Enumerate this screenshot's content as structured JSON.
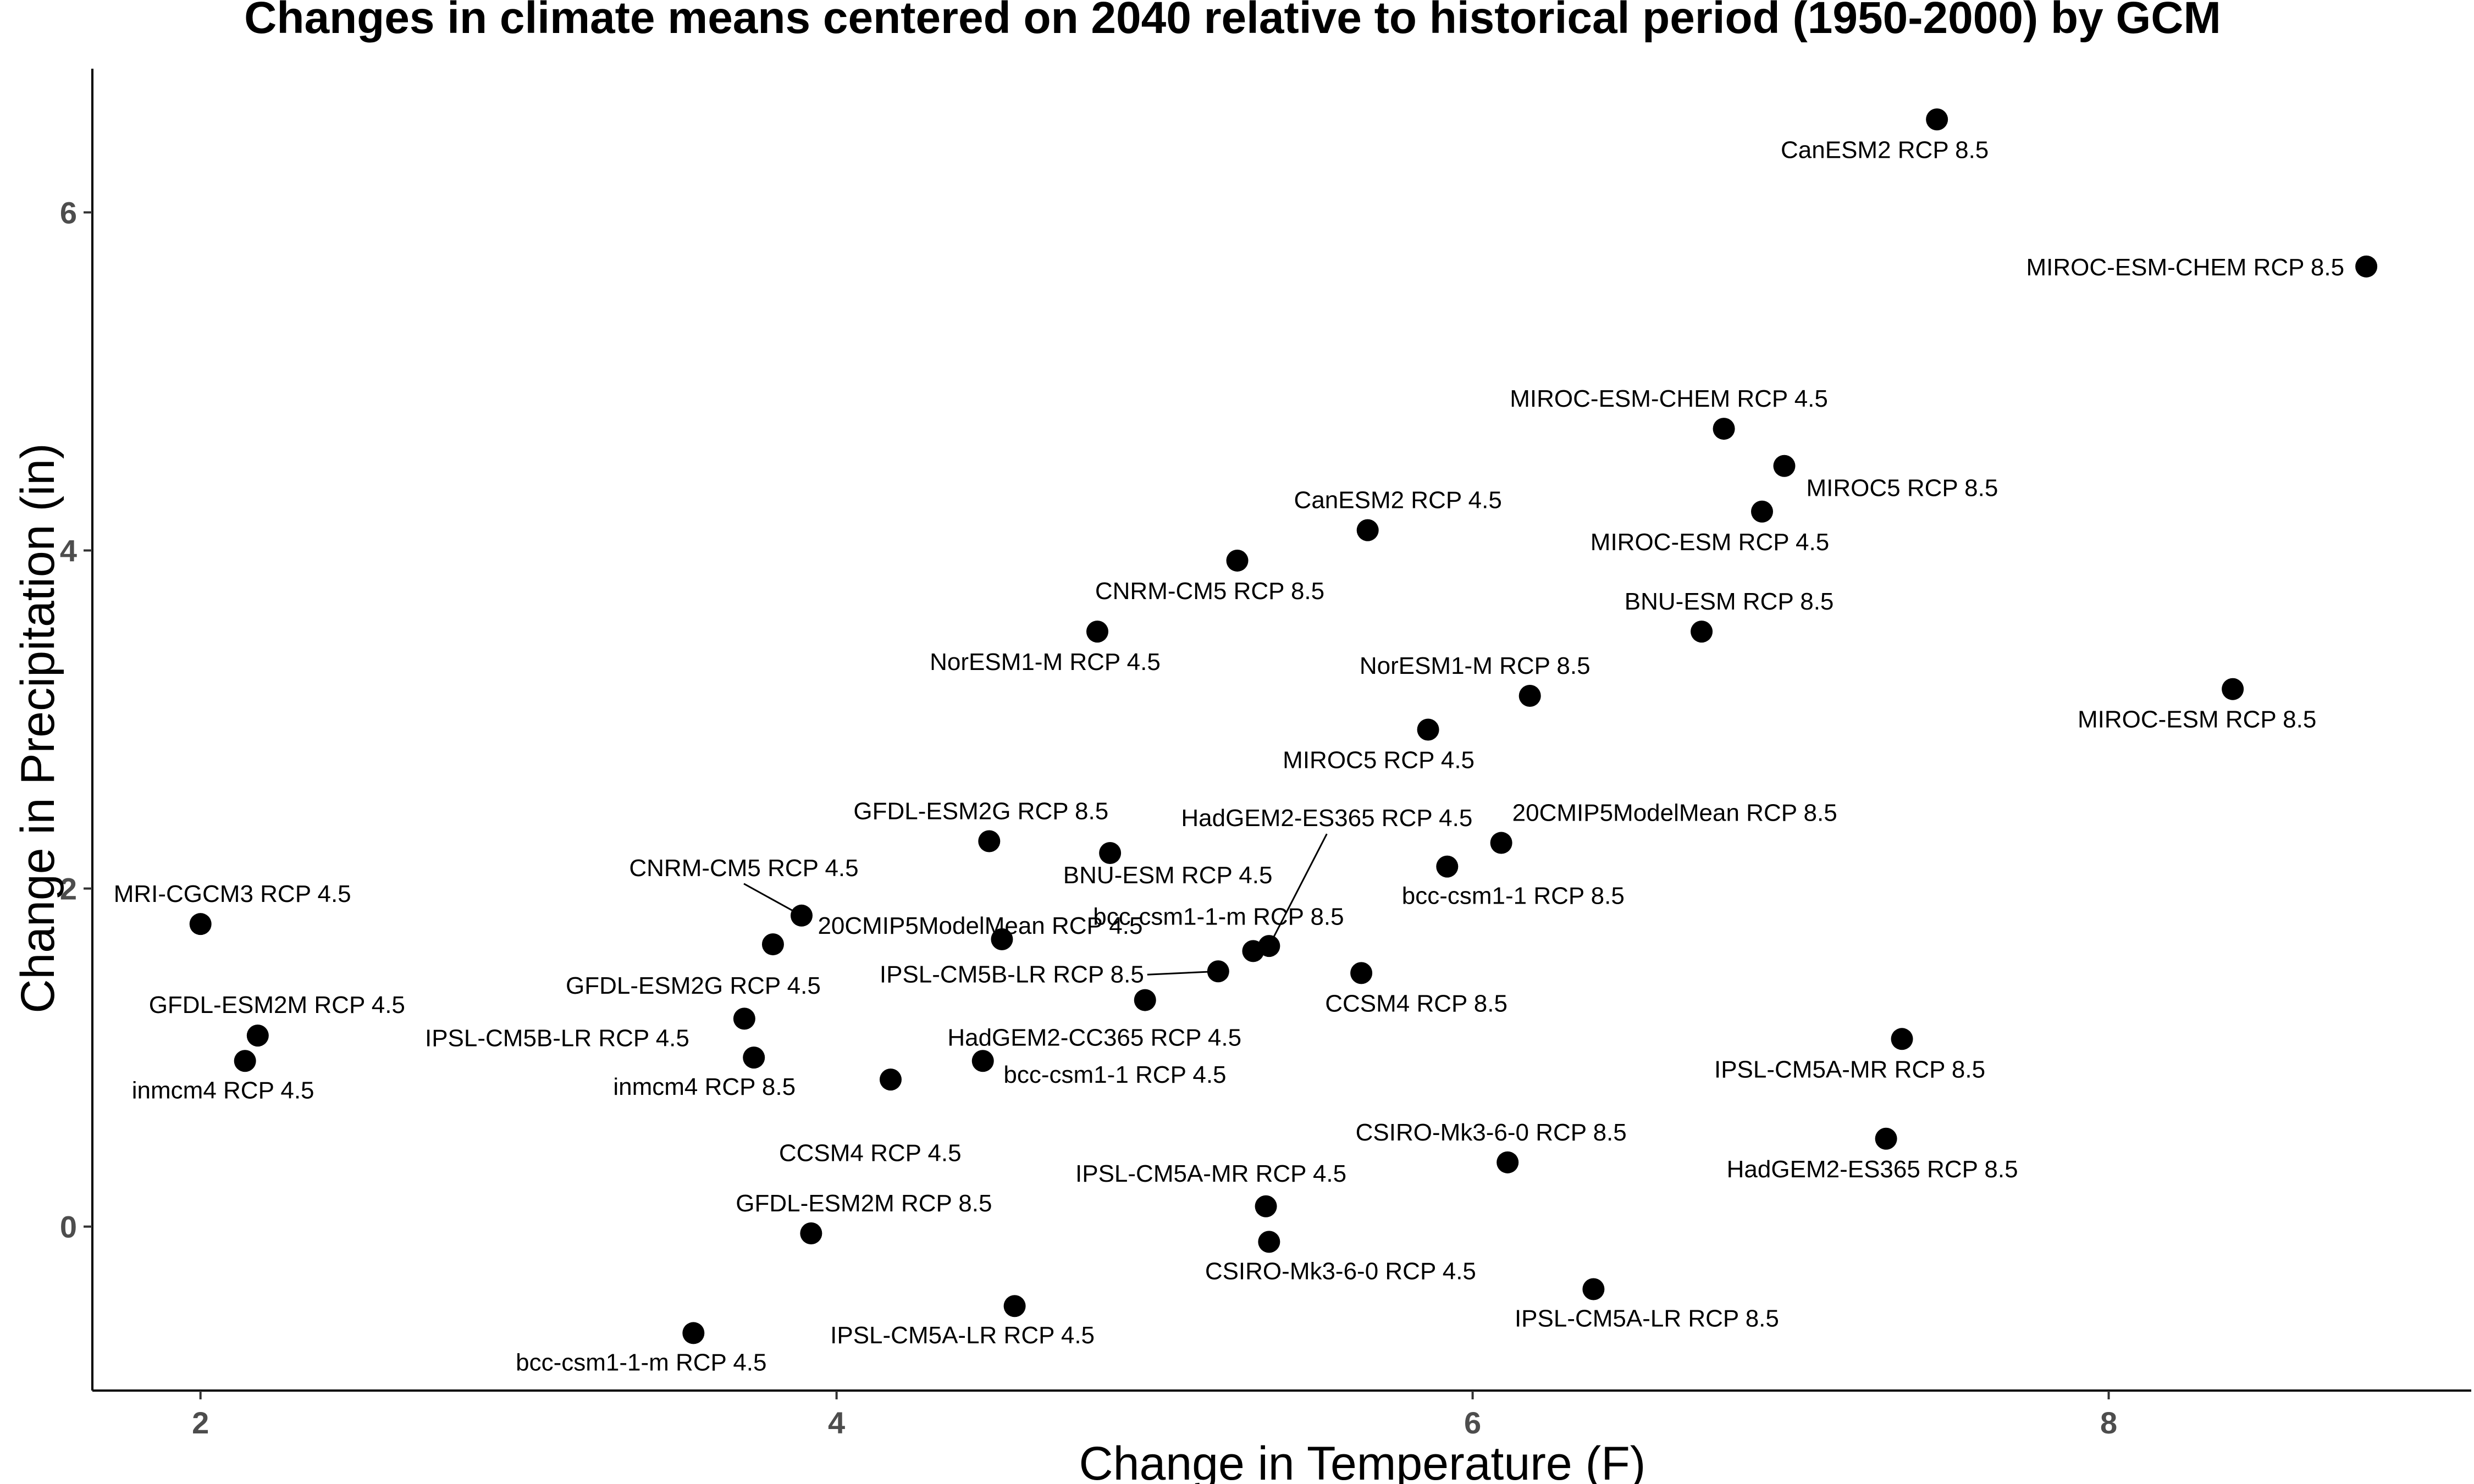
{
  "chart_data": {
    "type": "scatter",
    "title": "Changes in climate means centered on 2040 relative to historical period (1950-2000) by GCM",
    "xlabel": "Change in Temperature (F)",
    "ylabel": "Change in Precipitation (in)",
    "xlim": [
      1.66,
      9.14
    ],
    "ylim": [
      -0.97,
      6.85
    ],
    "xticks": [
      2,
      4,
      6,
      8
    ],
    "yticks": [
      0,
      2,
      4,
      6
    ],
    "grid": false,
    "legend": "none",
    "point_color": "#000000",
    "points": [
      {
        "label": "CanESM2 RCP 8.5",
        "x": 7.46,
        "y": 6.55
      },
      {
        "label": "MIROC-ESM-CHEM RCP 8.5",
        "x": 8.81,
        "y": 5.68
      },
      {
        "label": "MIROC-ESM-CHEM RCP 4.5",
        "x": 6.79,
        "y": 4.72
      },
      {
        "label": "MIROC5 RCP 8.5",
        "x": 6.98,
        "y": 4.5
      },
      {
        "label": "MIROC-ESM RCP 4.5",
        "x": 6.91,
        "y": 4.23
      },
      {
        "label": "CanESM2 RCP 4.5",
        "x": 5.67,
        "y": 4.12
      },
      {
        "label": "CNRM-CM5 RCP 8.5",
        "x": 5.26,
        "y": 3.94
      },
      {
        "label": "BNU-ESM RCP 8.5",
        "x": 6.72,
        "y": 3.52
      },
      {
        "label": "NorESM1-M RCP 4.5",
        "x": 4.82,
        "y": 3.52
      },
      {
        "label": "MIROC-ESM RCP 8.5",
        "x": 8.39,
        "y": 3.18
      },
      {
        "label": "NorESM1-M RCP 8.5",
        "x": 6.18,
        "y": 3.14
      },
      {
        "label": "MIROC5 RCP 4.5",
        "x": 5.86,
        "y": 2.94
      },
      {
        "label": "GFDL-ESM2G RCP 8.5",
        "x": 4.48,
        "y": 2.28
      },
      {
        "label": "20CMIP5ModelMean RCP 8.5",
        "x": 6.09,
        "y": 2.27
      },
      {
        "label": "BNU-ESM RCP 4.5",
        "x": 4.86,
        "y": 2.21
      },
      {
        "label": "bcc-csm1-1 RCP 8.5",
        "x": 5.92,
        "y": 2.13
      },
      {
        "label": "CNRM-CM5 RCP 4.5",
        "x": 3.89,
        "y": 1.84
      },
      {
        "label": "MRI-CGCM3 RCP 4.5",
        "x": 2.0,
        "y": 1.79
      },
      {
        "label": "20CMIP5ModelMean RCP 4.5",
        "x": 4.52,
        "y": 1.7
      },
      {
        "label": "GFDL-ESM2G RCP 4.5",
        "x": 3.8,
        "y": 1.67
      },
      {
        "label": "HadGEM2-ES365 RCP 4.5",
        "x": 5.36,
        "y": 1.66
      },
      {
        "label": "bcc-csm1-1-m RCP 8.5",
        "x": 5.31,
        "y": 1.63
      },
      {
        "label": "IPSL-CM5B-LR RCP 8.5",
        "x": 5.2,
        "y": 1.51
      },
      {
        "label": "CCSM4 RCP 8.5",
        "x": 5.65,
        "y": 1.5
      },
      {
        "label": "CCSM4 RCP 4.5",
        "x": 4.97,
        "y": 1.34
      },
      {
        "label": "IPSL-CM5B-LR RCP 4.5",
        "x": 3.71,
        "y": 1.23
      },
      {
        "label": "GFDL-ESM2M RCP 4.5",
        "x": 2.18,
        "y": 1.13
      },
      {
        "label": "IPSL-CM5A-MR RCP 8.5",
        "x": 7.35,
        "y": 1.11
      },
      {
        "label": "inmcm4 RCP 8.5",
        "x": 3.74,
        "y": 1.0
      },
      {
        "label": "HadGEM2-CC365 RCP 4.5",
        "x": 4.46,
        "y": 0.98
      },
      {
        "label": "inmcm4 RCP 4.5",
        "x": 2.14,
        "y": 0.98
      },
      {
        "label": "bcc-csm1-1 RCP 4.5",
        "x": 4.17,
        "y": 0.87
      },
      {
        "label": "HadGEM2-ES365 RCP 8.5",
        "x": 7.3,
        "y": 0.52
      },
      {
        "label": "CSIRO-Mk3-6-0 RCP 8.5",
        "x": 6.11,
        "y": 0.38
      },
      {
        "label": "IPSL-CM5A-MR RCP 4.5",
        "x": 5.35,
        "y": 0.12
      },
      {
        "label": "GFDL-ESM2M RCP 8.5",
        "x": 3.92,
        "y": -0.04
      },
      {
        "label": "CSIRO-Mk3-6-0 RCP 4.5",
        "x": 5.36,
        "y": -0.09
      },
      {
        "label": "IPSL-CM5A-LR RCP 8.5",
        "x": 6.38,
        "y": -0.37
      },
      {
        "label": "IPSL-CM5A-LR RCP 4.5",
        "x": 4.56,
        "y": -0.47
      },
      {
        "label": "bcc-csm1-1-m RCP 4.5",
        "x": 3.55,
        "y": -0.63
      }
    ]
  }
}
